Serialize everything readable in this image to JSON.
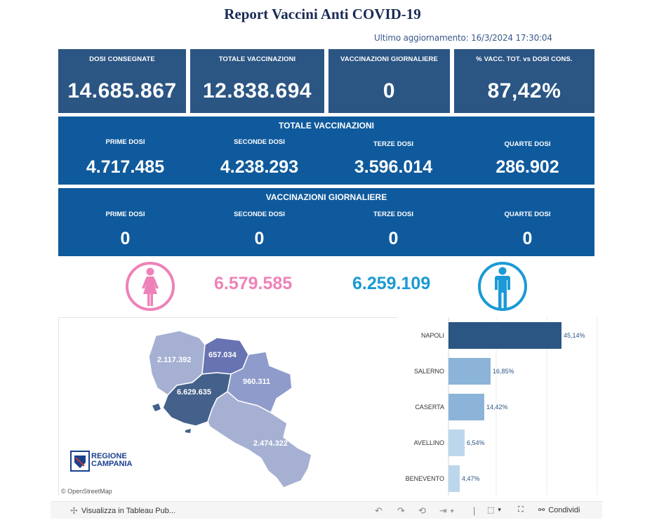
{
  "title": "Report Vaccini Anti COVID-19",
  "updated": "Ultimo aggiornamento: 16/3/2024  17:30:04",
  "kpis": [
    {
      "label": "DOSI  CONSEGNATE",
      "value": "14.685.867"
    },
    {
      "label": "TOTALE VACCINAZIONI",
      "value": "12.838.694"
    },
    {
      "label": "VACCINAZIONI GIORNALIERE",
      "value": "0"
    },
    {
      "label": "% VACC. TOT. vs DOSI CONS.",
      "value": "87,42%"
    }
  ],
  "totale": {
    "title": "TOTALE VACCINAZIONI",
    "cols": [
      {
        "label": "PRIME DOSI",
        "value": "4.717.485"
      },
      {
        "label": "SECONDE DOSI",
        "value": "4.238.293"
      },
      {
        "label": "TERZE DOSI",
        "value": "3.596.014"
      },
      {
        "label": "QUARTE DOSI",
        "value": "286.902"
      }
    ]
  },
  "giornaliere": {
    "title": "VACCINAZIONI GIORNALIERE",
    "cols": [
      {
        "label": "PRIME DOSI",
        "value": "0"
      },
      {
        "label": "SECONDE DOSI",
        "value": "0"
      },
      {
        "label": "TERZE DOSI",
        "value": "0"
      },
      {
        "label": "QUARTE DOSI",
        "value": "0"
      }
    ]
  },
  "gender": {
    "female_value": "6.579.585",
    "male_value": "6.259.109",
    "female_icon": "female-icon",
    "male_icon": "male-icon",
    "female_color": "#ee82b8",
    "male_color": "#1a9ad6"
  },
  "map": {
    "labels": {
      "caserta": "2.117.392",
      "benevento": "657.034",
      "avellino": "960.311",
      "napoli": "6.629.635",
      "salerno": "2.474.322"
    },
    "logo_line1": "REGIONE",
    "logo_line2": "CAMPANIA",
    "attribution": "© OpenStreetMap"
  },
  "bars": {
    "items": [
      {
        "name": "NAPOLI",
        "pct": 45.14,
        "label": "45,14%",
        "color": "#2b5583"
      },
      {
        "name": "SALERNO",
        "pct": 16.85,
        "label": "16,85%",
        "color": "#8cb4d9"
      },
      {
        "name": "CASERTA",
        "pct": 14.42,
        "label": "14,42%",
        "color": "#8cb4d9"
      },
      {
        "name": "AVELLINO",
        "pct": 6.54,
        "label": "6,54%",
        "color": "#bcd6ec"
      },
      {
        "name": "BENEVENTO",
        "pct": 4.47,
        "label": "4,47%",
        "color": "#bcd6ec"
      }
    ]
  },
  "toolbar": {
    "view_label": "Visualizza in Tableau Pub...",
    "share_label": "Condividi"
  },
  "colors": {
    "kpi_bg": "#2b5583",
    "panel_bg": "#0f5a9c",
    "title": "#1a2b55"
  }
}
